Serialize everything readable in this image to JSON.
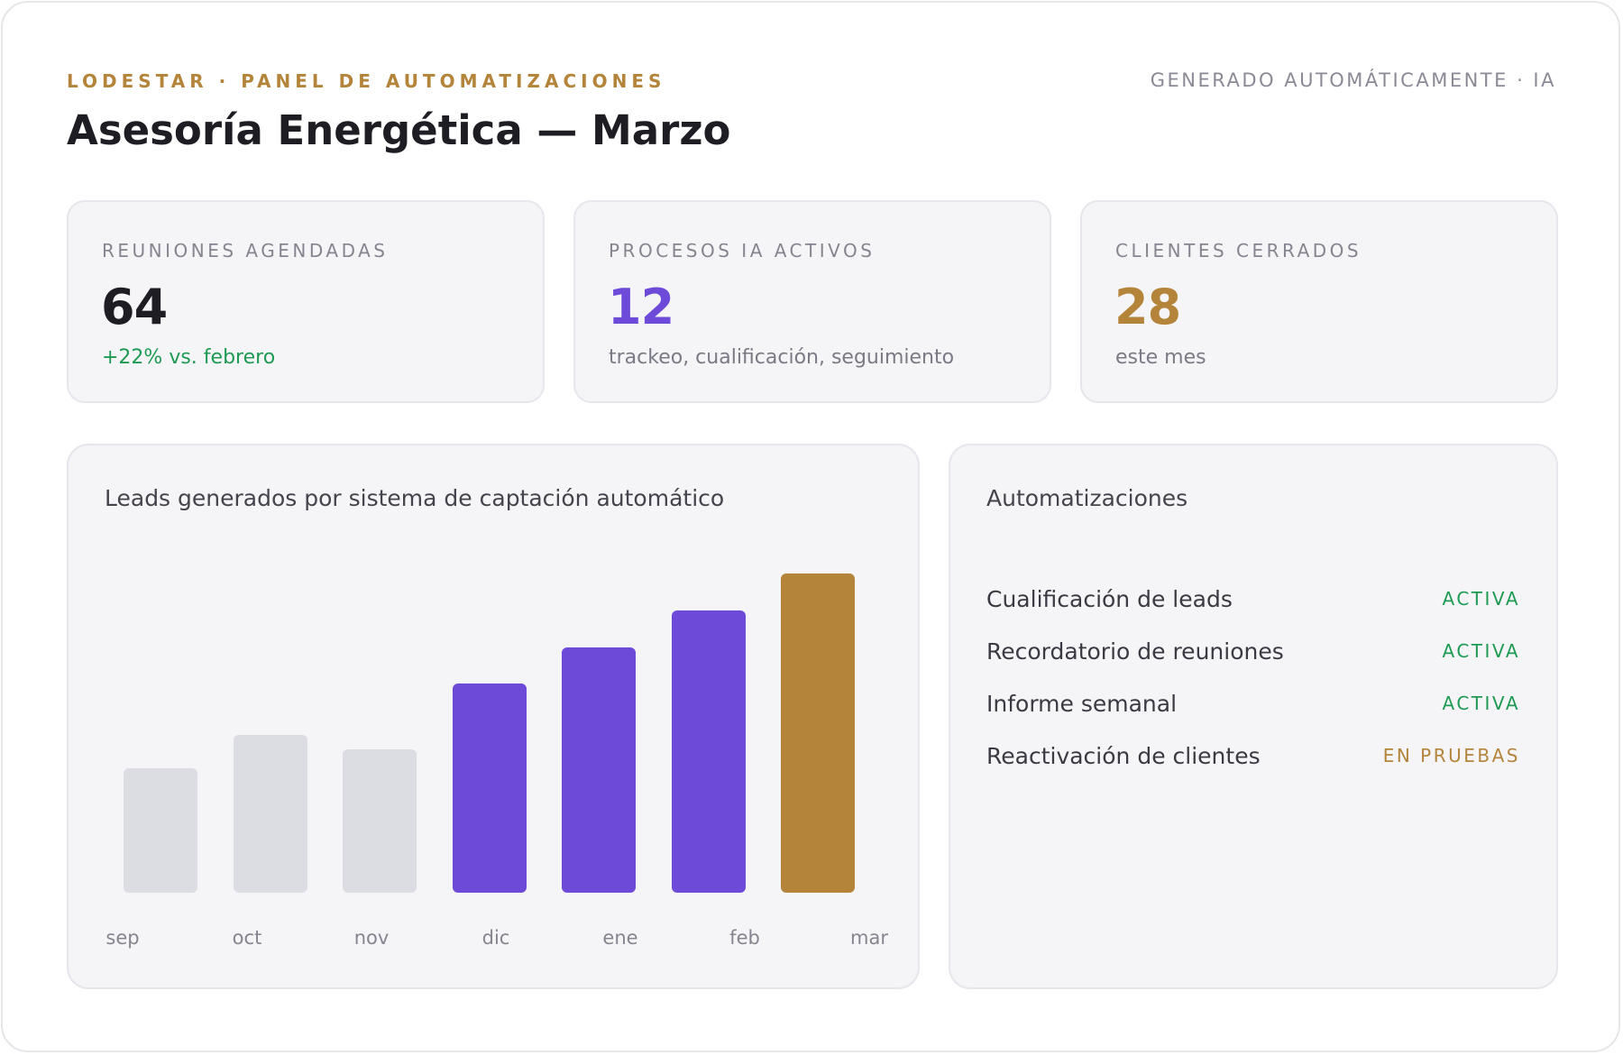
{
  "header": {
    "brand": "LODESTAR · PANEL DE AUTOMATIZACIONES",
    "generated": "GENERADO AUTOMÁTICAMENTE · IA",
    "title": "Asesoría Energética — Marzo"
  },
  "kpis": [
    {
      "label": "REUNIONES AGENDADAS",
      "value": "64",
      "sub": "+22% vs. febrero",
      "value_color": "#1d1d23",
      "sub_color": "#1e9a52"
    },
    {
      "label": "PROCESOS IA ACTIVOS",
      "value": "12",
      "sub": "trackeo, cualificación, seguimiento",
      "value_color": "#6d4bd8",
      "sub_color": "#7a7a84"
    },
    {
      "label": "CLIENTES CERRADOS",
      "value": "28",
      "sub": "este mes",
      "value_color": "#b4843a",
      "sub_color": "#7a7a84"
    }
  ],
  "chart_data": {
    "type": "bar",
    "title": "Leads generados por sistema de captación automático",
    "categories": [
      "sep",
      "oct",
      "nov",
      "dic",
      "ene",
      "feb",
      "mar"
    ],
    "values": [
      34,
      43,
      39,
      57,
      67,
      77,
      87
    ],
    "ylim": [
      0,
      90
    ],
    "colors": [
      "#dcdce3",
      "#dcdce3",
      "#dcdce3",
      "#6d4bd8",
      "#6d4bd8",
      "#6d4bd8",
      "#b4843a"
    ],
    "grid": false,
    "legend": "none"
  },
  "automations": {
    "title": "Automatizaciones",
    "items": [
      {
        "name": "Cualificación de leads",
        "status": "ACTIVA",
        "status_color": "#1e9a52"
      },
      {
        "name": "Recordatorio de reuniones",
        "status": "ACTIVA",
        "status_color": "#1e9a52"
      },
      {
        "name": "Informe semanal",
        "status": "ACTIVA",
        "status_color": "#1e9a52"
      },
      {
        "name": "Reactivación de clientes",
        "status": "EN PRUEBAS",
        "status_color": "#b4843a"
      }
    ]
  }
}
